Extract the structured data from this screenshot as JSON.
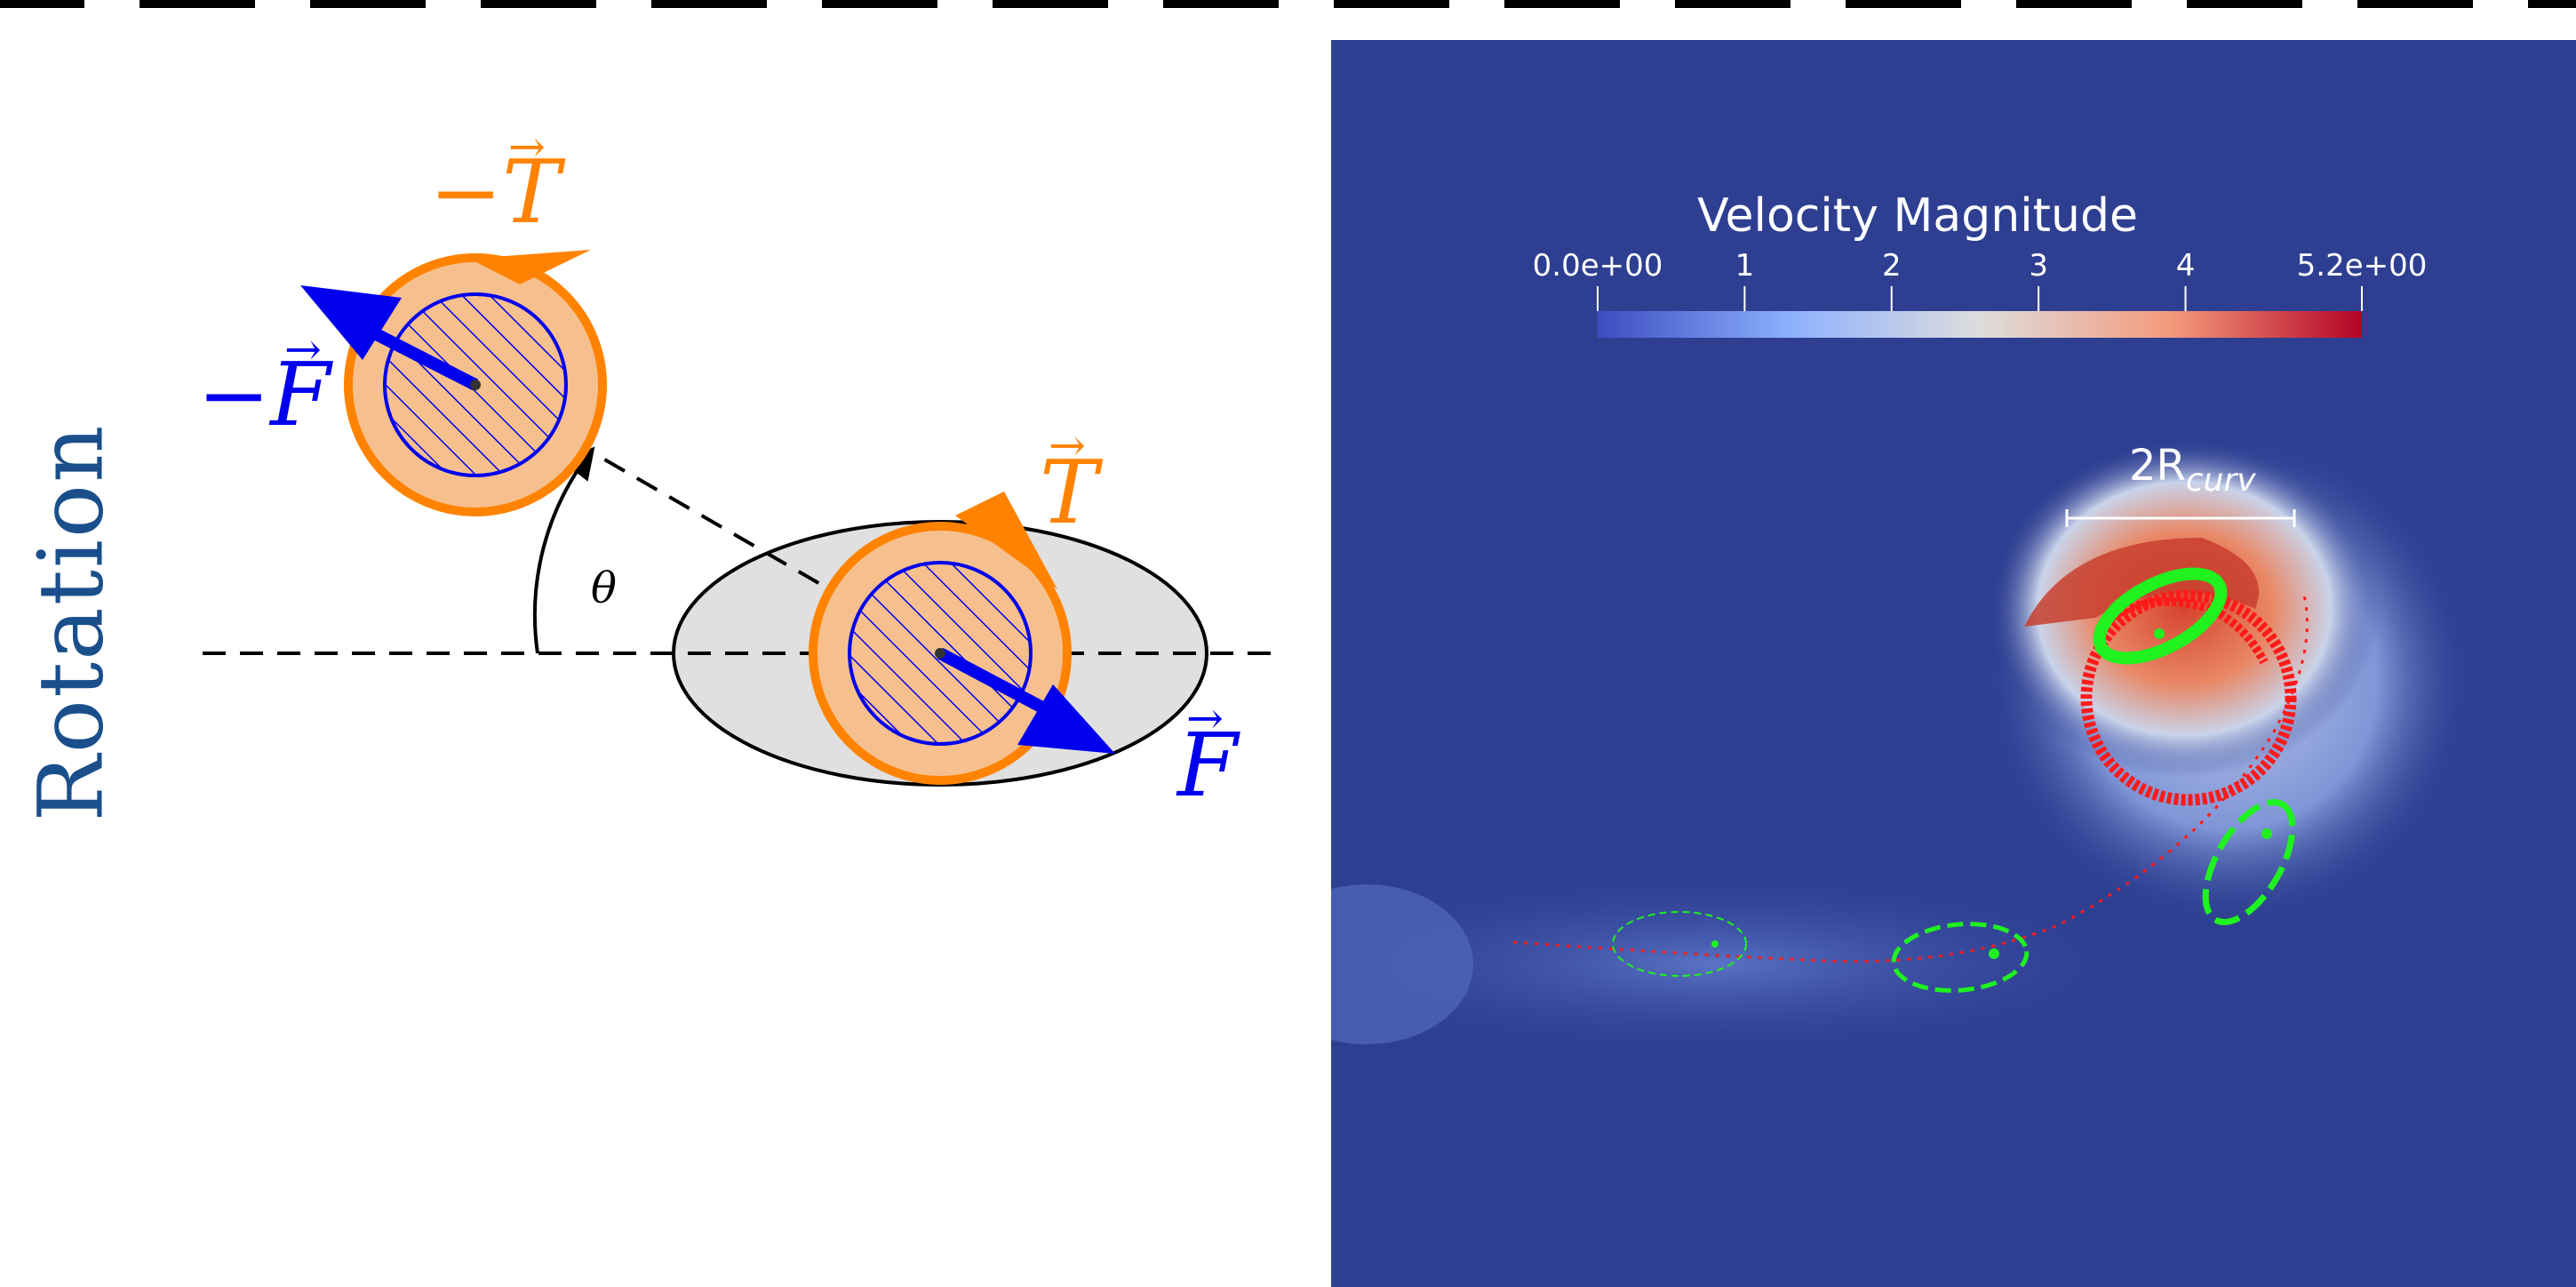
{
  "row_label": "Rotation",
  "colors": {
    "row_label": "#1a4f8b",
    "orange": "#ff8300",
    "orange_fill": "#f6c08e",
    "blue": "#0000ee",
    "ellipse_fill": "#e0e0e0",
    "sim_background": "#2e3f92",
    "trajectory": "#ff1a1a",
    "cell_outline": "#1ff21f"
  },
  "diagram": {
    "labels": {
      "neg_torque": "−T",
      "torque": "T",
      "neg_force": "−F",
      "force": "F",
      "angle": "θ"
    }
  },
  "simulation": {
    "colorbar": {
      "title": "Velocity Magnitude",
      "ticks": [
        "0.0e+00",
        "1",
        "2",
        "3",
        "4",
        "5.2e+00"
      ],
      "min": 0.0,
      "max": 5.2,
      "colormap": "cool-to-warm"
    },
    "scale_bar": {
      "label_main": "2R",
      "label_sub": "curv"
    }
  }
}
